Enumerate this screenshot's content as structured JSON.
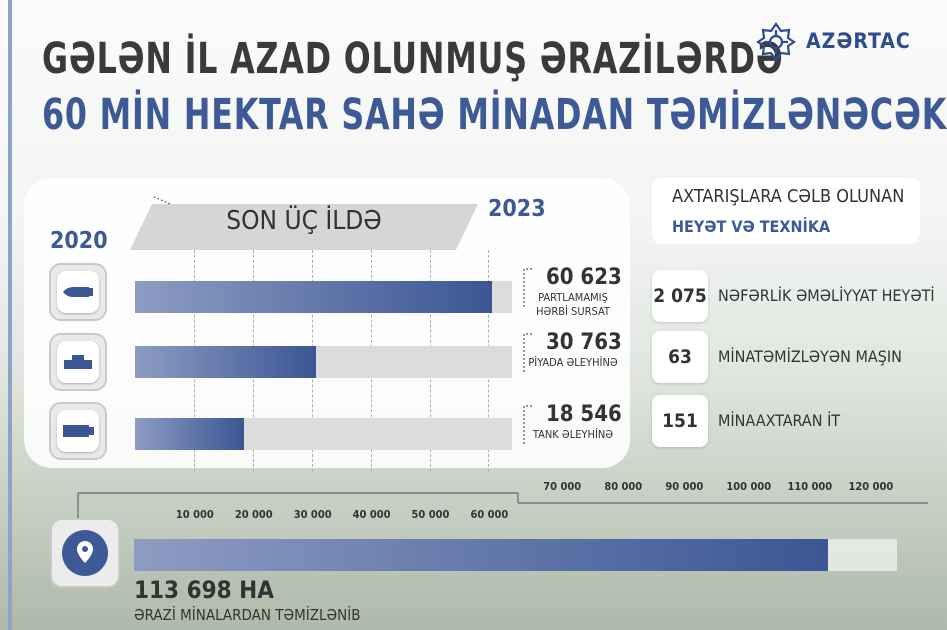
{
  "header": {
    "title_line1": "GƏLƏN İL AZAD OLUNMUŞ ƏRAZİLƏRDƏ",
    "title_line2": "60 MİN HEKTAR SAHƏ MİNADAN TƏMİZLƏNƏCƏK",
    "brand": "AZƏRTAC",
    "accent_color": "#3d5a97"
  },
  "period": {
    "start": "2020",
    "end": "2023",
    "label": "SON ÜÇ İLDƏ"
  },
  "chart_data": [
    {
      "type": "bar",
      "orientation": "horizontal",
      "categories": [
        "PARTLAMAMIŞ HƏRBİ SURSAT",
        "PİYADA ƏLEYHİNƏ",
        "TANK ƏLEYHİNƏ"
      ],
      "category_lines": [
        [
          "PARTLAMAMIŞ",
          "HƏRBİ SURSAT"
        ],
        [
          "PİYADA ƏLEYHİNƏ"
        ],
        [
          "TANK ƏLEYHİNƏ"
        ]
      ],
      "value_labels": [
        "60 623",
        "30 763",
        "18 546"
      ],
      "values": [
        60623,
        30763,
        18546
      ],
      "icons": [
        "shell-icon",
        "anti-personnel-mine-icon",
        "anti-tank-mine-icon"
      ],
      "ticks": [
        10000,
        20000,
        30000,
        40000,
        50000,
        60000
      ],
      "tick_labels": [
        "10 000",
        "20 000",
        "30 000",
        "40 000",
        "50 000",
        "60 000"
      ],
      "xlim": [
        0,
        64000
      ],
      "grid": true
    },
    {
      "type": "bar",
      "orientation": "horizontal",
      "values": [
        113698
      ],
      "value_label": "113 698 HA",
      "caption": "ƏRAZİ MİNALARDAN TƏMİZLƏNİB",
      "icon": "location-pin-icon",
      "ticks": [
        70000,
        80000,
        90000,
        100000,
        110000,
        120000
      ],
      "tick_labels": [
        "70 000",
        "80 000",
        "90 000",
        "100 000",
        "110 000",
        "120 000"
      ],
      "xlim": [
        0,
        125000
      ]
    }
  ],
  "resources": {
    "heading": "AXTARIŞLARA CƏLB OLUNAN",
    "subheading": "HEYƏT VƏ TEXNİKA",
    "items": [
      {
        "value": "2 075",
        "label": "NƏFƏRLİK ƏMƏLİYYAT HEYƏTİ"
      },
      {
        "value": "63",
        "label": "MİNATƏMİZLƏYƏN MAŞIN"
      },
      {
        "value": "151",
        "label": "MİNAAXTARAN İT"
      }
    ]
  }
}
